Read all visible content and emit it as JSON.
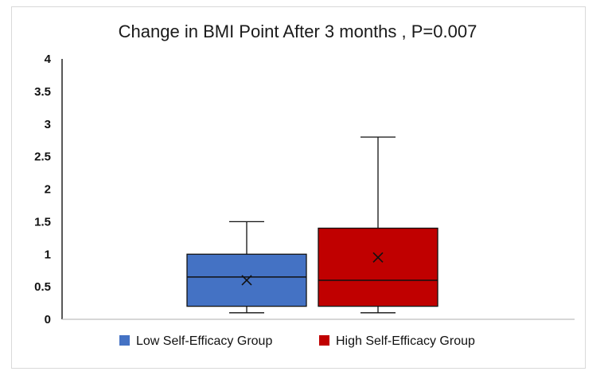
{
  "chart_data": {
    "type": "box",
    "title": "Change in BMI Point After 3 months , P=0.007",
    "xlabel": "",
    "ylabel": "",
    "ylim": [
      0,
      4
    ],
    "yticks": [
      0,
      0.5,
      1,
      1.5,
      2,
      2.5,
      3,
      3.5,
      4
    ],
    "ytick_labels": [
      "0",
      "0.5",
      "1",
      "1.5",
      "2",
      "2.5",
      "3",
      "3.5",
      "4"
    ],
    "grid": false,
    "legend_position": "bottom",
    "series": [
      {
        "name": "Low Self-Efficacy Group",
        "color": "#4472c4",
        "min": 0.1,
        "q1": 0.2,
        "median": 0.65,
        "q3": 1.0,
        "max": 1.5,
        "mean": 0.6
      },
      {
        "name": "High Self-Efficacy Group",
        "color": "#c00000",
        "min": 0.1,
        "q1": 0.2,
        "median": 0.6,
        "q3": 1.4,
        "max": 2.8,
        "mean": 0.95
      }
    ]
  }
}
